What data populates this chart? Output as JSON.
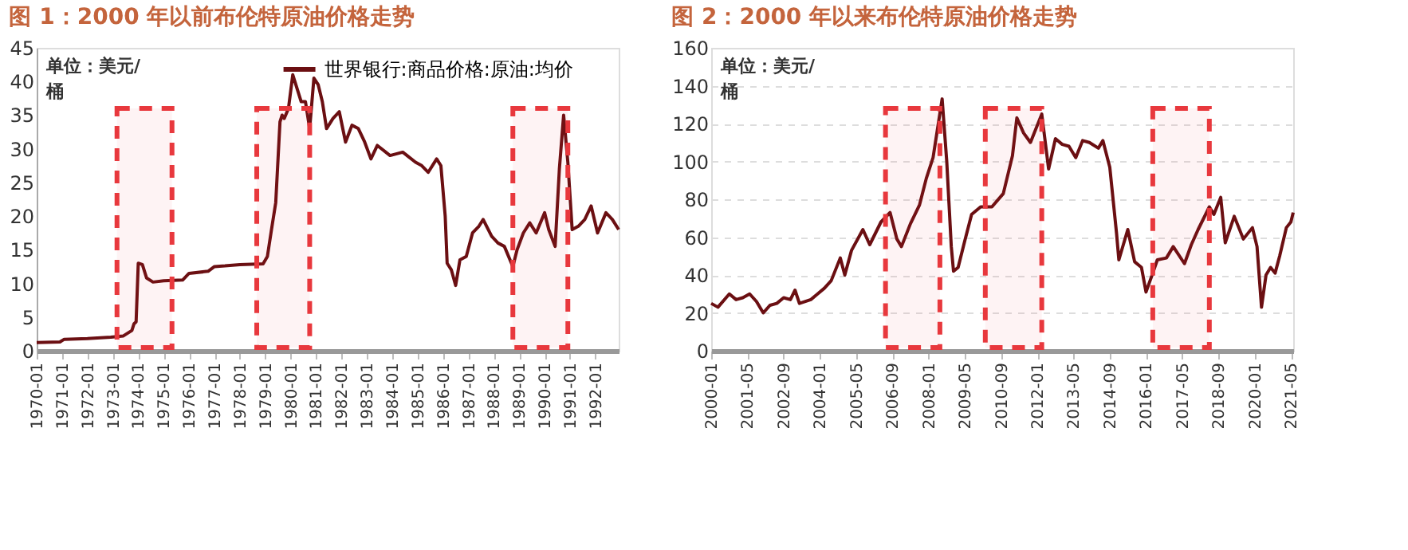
{
  "chart_data": [
    {
      "type": "line",
      "title": "图 1：2000 年以前布伦特原油价格走势",
      "ylabel": "单位：美元/桶",
      "legend": "top",
      "grid": false,
      "xlim": [
        "1970-01",
        "1992-12"
      ],
      "xticks": [
        "1970-01",
        "1971-01",
        "1972-01",
        "1973-01",
        "1974-01",
        "1975-01",
        "1976-01",
        "1977-01",
        "1978-01",
        "1979-01",
        "1980-01",
        "1981-01",
        "1982-01",
        "1983-01",
        "1984-01",
        "1985-01",
        "1986-01",
        "1987-01",
        "1988-01",
        "1989-01",
        "1990-01",
        "1991-01",
        "1992-01"
      ],
      "ylim": [
        0,
        45
      ],
      "yticks": [
        0,
        5,
        10,
        15,
        20,
        25,
        30,
        35,
        40,
        45
      ],
      "bands": [
        {
          "axis": "x",
          "from": "1973-03",
          "to": "1975-05",
          "color": "#e8383d"
        },
        {
          "axis": "x",
          "from": "1978-09",
          "to": "1980-10",
          "color": "#e8383d"
        },
        {
          "axis": "x",
          "from": "1988-10",
          "to": "1990-12",
          "color": "#e8383d"
        }
      ],
      "series": [
        {
          "name": "世界银行:商品价格:原油:均价",
          "color": "#6b0f12",
          "x": [
            "1970-01",
            "1970-12",
            "1971-02",
            "1972-01",
            "1972-12",
            "1973-06",
            "1973-10",
            "1973-11",
            "1973-12",
            "1974-01",
            "1974-03",
            "1974-05",
            "1974-08",
            "1975-01",
            "1975-10",
            "1976-01",
            "1976-10",
            "1977-01",
            "1977-06",
            "1978-01",
            "1978-12",
            "1979-02",
            "1979-04",
            "1979-06",
            "1979-08",
            "1979-09",
            "1979-10",
            "1979-12",
            "1980-02",
            "1980-04",
            "1980-06",
            "1980-08",
            "1980-10",
            "1980-12",
            "1981-02",
            "1981-04",
            "1981-06",
            "1981-09",
            "1981-12",
            "1982-03",
            "1982-06",
            "1982-09",
            "1982-12",
            "1983-03",
            "1983-06",
            "1983-12",
            "1984-06",
            "1984-12",
            "1985-03",
            "1985-06",
            "1985-10",
            "1985-12",
            "1986-02",
            "1986-03",
            "1986-05",
            "1986-07",
            "1986-09",
            "1986-12",
            "1987-03",
            "1987-06",
            "1987-08",
            "1987-12",
            "1988-03",
            "1988-06",
            "1988-10",
            "1988-12",
            "1989-03",
            "1989-06",
            "1989-09",
            "1990-01",
            "1990-03",
            "1990-06",
            "1990-08",
            "1990-10",
            "1990-12",
            "1991-02",
            "1991-05",
            "1991-08",
            "1991-11",
            "1992-02",
            "1992-06",
            "1992-09",
            "1992-12"
          ],
          "values": [
            1.2,
            1.3,
            1.7,
            1.8,
            2.0,
            2.2,
            3.0,
            4.0,
            4.3,
            13,
            12.8,
            10.8,
            10.2,
            10.4,
            10.5,
            11.5,
            11.8,
            12.5,
            12.6,
            12.8,
            12.9,
            14,
            18,
            22,
            34,
            35,
            34.5,
            36,
            41,
            39,
            37,
            37,
            33,
            40.5,
            39.5,
            37,
            33,
            34.5,
            35.5,
            31,
            33.5,
            33,
            31,
            28.5,
            30.5,
            29,
            29.5,
            28,
            27.5,
            26.5,
            28.5,
            27.5,
            20,
            13,
            12,
            9.7,
            13.5,
            14,
            17.5,
            18.5,
            19.5,
            17,
            16,
            15.5,
            12.5,
            15,
            17.5,
            19,
            17.5,
            20.5,
            18,
            15.5,
            27,
            35,
            28,
            18,
            18.5,
            19.5,
            21.5,
            17.5,
            20.5,
            19.5,
            18
          ]
        }
      ]
    },
    {
      "type": "line",
      "title": "图 2：2000 年以来布伦特原油价格走势",
      "ylabel": "单位：美元/桶",
      "grid": "y",
      "xlim": [
        "2000-01",
        "2021-06"
      ],
      "xticks": [
        "2000-01",
        "2001-05",
        "2002-09",
        "2004-01",
        "2005-05",
        "2006-09",
        "2008-01",
        "2009-05",
        "2010-09",
        "2012-01",
        "2013-05",
        "2014-09",
        "2016-01",
        "2017-05",
        "2018-09",
        "2020-01",
        "2021-05"
      ],
      "ylim": [
        0,
        160
      ],
      "yticks": [
        0,
        20,
        40,
        60,
        80,
        100,
        120,
        140,
        160
      ],
      "bands": [
        {
          "axis": "x",
          "from": "2006-06",
          "to": "2008-06",
          "color": "#e8383d"
        },
        {
          "axis": "x",
          "from": "2010-02",
          "to": "2012-03",
          "color": "#e8383d"
        },
        {
          "axis": "x",
          "from": "2016-04",
          "to": "2018-05",
          "color": "#e8383d"
        }
      ],
      "series": [
        {
          "color": "#6b0f12",
          "x": [
            "2000-01",
            "2000-04",
            "2000-09",
            "2000-12",
            "2001-03",
            "2001-06",
            "2001-09",
            "2001-12",
            "2002-03",
            "2002-06",
            "2002-09",
            "2002-12",
            "2003-02",
            "2003-04",
            "2003-09",
            "2003-12",
            "2004-03",
            "2004-06",
            "2004-10",
            "2004-12",
            "2005-03",
            "2005-08",
            "2005-11",
            "2006-04",
            "2006-08",
            "2006-11",
            "2007-01",
            "2007-05",
            "2007-09",
            "2007-12",
            "2008-03",
            "2008-07",
            "2008-09",
            "2008-11",
            "2008-12",
            "2009-02",
            "2009-05",
            "2009-08",
            "2009-12",
            "2010-05",
            "2010-10",
            "2011-02",
            "2011-04",
            "2011-07",
            "2011-10",
            "2012-03",
            "2012-06",
            "2012-09",
            "2012-12",
            "2013-03",
            "2013-06",
            "2013-09",
            "2013-12",
            "2014-04",
            "2014-06",
            "2014-09",
            "2014-12",
            "2015-01",
            "2015-05",
            "2015-08",
            "2015-11",
            "2016-01",
            "2016-04",
            "2016-06",
            "2016-10",
            "2017-01",
            "2017-06",
            "2017-09",
            "2017-12",
            "2018-05",
            "2018-07",
            "2018-10",
            "2018-12",
            "2019-04",
            "2019-08",
            "2019-12",
            "2020-02",
            "2020-04",
            "2020-06",
            "2020-08",
            "2020-10",
            "2020-12",
            "2021-03",
            "2021-05",
            "2021-06"
          ],
          "values": [
            25,
            23,
            30,
            27,
            28,
            30,
            26,
            20,
            24,
            25,
            28,
            27,
            32,
            25,
            27,
            30,
            33,
            37,
            49,
            40,
            53,
            64,
            56,
            68,
            73,
            59,
            55,
            67,
            77,
            91,
            102,
            133,
            100,
            55,
            42,
            44,
            58,
            72,
            76,
            76,
            83,
            103,
            123,
            115,
            110,
            125,
            96,
            112,
            109,
            108,
            102,
            111,
            110,
            107,
            111,
            97,
            62,
            48,
            64,
            47,
            44,
            31,
            41,
            48,
            49,
            55,
            46,
            56,
            64,
            76,
            72,
            81,
            57,
            71,
            59,
            65,
            55,
            23,
            40,
            44,
            41,
            50,
            65,
            68,
            73
          ]
        }
      ]
    }
  ]
}
